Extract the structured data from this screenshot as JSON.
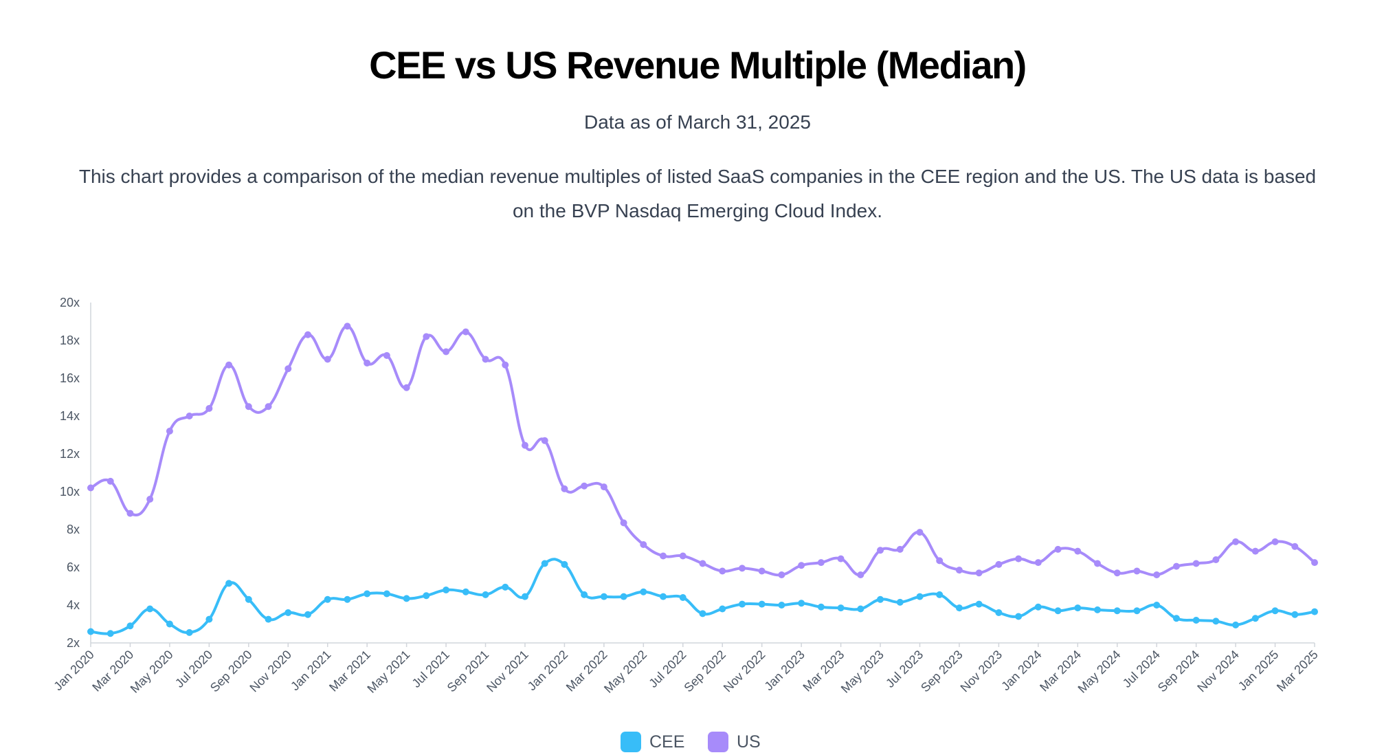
{
  "header": {
    "title": "CEE vs US Revenue Multiple (Median)",
    "subtitle": "Data as of March 31, 2025",
    "description": "This chart provides a comparison of the median revenue multiples of listed SaaS companies in the CEE region and the US. The US data is based on the BVP Nasdaq Emerging Cloud Index."
  },
  "colors": {
    "cee": "#38bdf8",
    "us": "#a78bfa",
    "axis": "#d1d5db",
    "tick_text": "#4b5563"
  },
  "chart_data": {
    "type": "line",
    "title": "CEE vs US Revenue Multiple (Median)",
    "subtitle": "Data as of March 31, 2025",
    "xlabel": "",
    "ylabel": "",
    "ylim": [
      2,
      20
    ],
    "yticks": [
      2,
      4,
      6,
      8,
      10,
      12,
      14,
      16,
      18,
      20
    ],
    "yticklabels": [
      "2x",
      "4x",
      "6x",
      "8x",
      "10x",
      "12x",
      "14x",
      "16x",
      "18x",
      "20x"
    ],
    "grid": false,
    "legend_position": "bottom-center",
    "categories": [
      "Jan 2020",
      "Feb 2020",
      "Mar 2020",
      "Apr 2020",
      "May 2020",
      "Jun 2020",
      "Jul 2020",
      "Aug 2020",
      "Sep 2020",
      "Oct 2020",
      "Nov 2020",
      "Dec 2020",
      "Jan 2021",
      "Feb 2021",
      "Mar 2021",
      "Apr 2021",
      "May 2021",
      "Jun 2021",
      "Jul 2021",
      "Aug 2021",
      "Sep 2021",
      "Oct 2021",
      "Nov 2021",
      "Dec 2021",
      "Jan 2022",
      "Feb 2022",
      "Mar 2022",
      "Apr 2022",
      "May 2022",
      "Jun 2022",
      "Jul 2022",
      "Aug 2022",
      "Sep 2022",
      "Oct 2022",
      "Nov 2022",
      "Dec 2022",
      "Jan 2023",
      "Feb 2023",
      "Mar 2023",
      "Apr 2023",
      "May 2023",
      "Jun 2023",
      "Jul 2023",
      "Aug 2023",
      "Sep 2023",
      "Oct 2023",
      "Nov 2023",
      "Dec 2023",
      "Jan 2024",
      "Feb 2024",
      "Mar 2024",
      "Apr 2024",
      "May 2024",
      "Jun 2024",
      "Jul 2024",
      "Aug 2024",
      "Sep 2024",
      "Oct 2024",
      "Nov 2024",
      "Dec 2024",
      "Jan 2025",
      "Feb 2025",
      "Mar 2025"
    ],
    "xticklabels": [
      "Jan 2020",
      "Mar 2020",
      "May 2020",
      "Jul 2020",
      "Sep 2020",
      "Nov 2020",
      "Jan 2021",
      "Mar 2021",
      "May 2021",
      "Jul 2021",
      "Sep 2021",
      "Nov 2021",
      "Jan 2022",
      "Mar 2022",
      "May 2022",
      "Jul 2022",
      "Sep 2022",
      "Nov 2022",
      "Jan 2023",
      "Mar 2023",
      "May 2023",
      "Jul 2023",
      "Sep 2023",
      "Nov 2023",
      "Jan 2024",
      "Mar 2024",
      "May 2024",
      "Jul 2024",
      "Sep 2024",
      "Nov 2024",
      "Jan 2025",
      "Mar 2025"
    ],
    "series": [
      {
        "name": "CEE",
        "color": "#38bdf8",
        "values": [
          2.6,
          2.5,
          2.9,
          3.8,
          3.0,
          2.55,
          3.25,
          5.15,
          4.3,
          3.25,
          3.6,
          3.5,
          4.3,
          4.3,
          4.6,
          4.6,
          4.35,
          4.5,
          4.8,
          4.7,
          4.55,
          4.95,
          4.45,
          6.2,
          6.15,
          4.55,
          4.45,
          4.45,
          4.7,
          4.45,
          4.4,
          3.55,
          3.8,
          4.05,
          4.05,
          4.0,
          4.1,
          3.9,
          3.85,
          3.8,
          4.3,
          4.15,
          4.45,
          4.55,
          3.85,
          4.05,
          3.6,
          3.4,
          3.9,
          3.7,
          3.85,
          3.75,
          3.7,
          3.7,
          4.0,
          3.3,
          3.2,
          3.15,
          2.95,
          3.3,
          3.7,
          3.5,
          3.65
        ]
      },
      {
        "name": "US",
        "color": "#a78bfa",
        "values": [
          10.2,
          10.55,
          8.85,
          9.6,
          13.2,
          14.0,
          14.4,
          16.7,
          14.5,
          14.5,
          16.5,
          18.3,
          17.0,
          18.75,
          16.8,
          17.2,
          15.5,
          18.2,
          17.4,
          18.45,
          17.0,
          16.7,
          12.45,
          12.7,
          10.15,
          10.3,
          10.25,
          8.35,
          7.2,
          6.6,
          6.6,
          6.2,
          5.8,
          5.95,
          5.8,
          5.6,
          6.1,
          6.25,
          6.45,
          5.6,
          6.9,
          6.95,
          7.85,
          6.35,
          5.85,
          5.7,
          6.15,
          6.45,
          6.25,
          6.95,
          6.85,
          6.2,
          5.7,
          5.8,
          5.6,
          6.05,
          6.2,
          6.4,
          7.35,
          6.85,
          7.35,
          7.1,
          6.25
        ]
      }
    ]
  }
}
